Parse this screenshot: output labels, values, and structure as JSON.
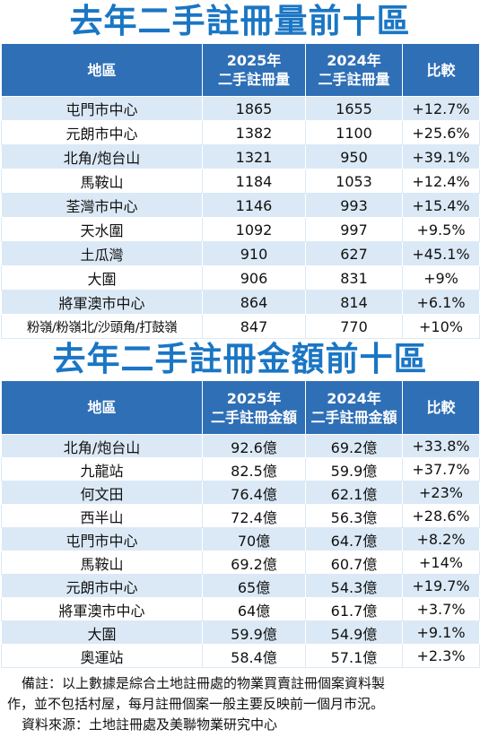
{
  "table1": {
    "title": "去年二手註冊量前十區",
    "headers": {
      "district": "地區",
      "y2025_line1": "2025年",
      "y2025_line2": "二手註冊量",
      "y2024_line1": "2024年",
      "y2024_line2": "二手註冊量",
      "compare": "比較"
    },
    "rows": [
      {
        "district": "屯門市中心",
        "y2025": "1865",
        "y2024": "1655",
        "change": "+12.7%"
      },
      {
        "district": "元朗市中心",
        "y2025": "1382",
        "y2024": "1100",
        "change": "+25.6%"
      },
      {
        "district": "北角/炮台山",
        "y2025": "1321",
        "y2024": "950",
        "change": "+39.1%"
      },
      {
        "district": "馬鞍山",
        "y2025": "1184",
        "y2024": "1053",
        "change": "+12.4%"
      },
      {
        "district": "荃灣市中心",
        "y2025": "1146",
        "y2024": "993",
        "change": "+15.4%"
      },
      {
        "district": "天水圍",
        "y2025": "1092",
        "y2024": "997",
        "change": "+9.5%"
      },
      {
        "district": "土瓜灣",
        "y2025": "910",
        "y2024": "627",
        "change": "+45.1%"
      },
      {
        "district": "大圍",
        "y2025": "906",
        "y2024": "831",
        "change": "+9%"
      },
      {
        "district": "將軍澳市中心",
        "y2025": "864",
        "y2024": "814",
        "change": "+6.1%"
      },
      {
        "district": "粉嶺/粉嶺北/沙頭角/打鼓嶺",
        "y2025": "847",
        "y2024": "770",
        "change": "+10%"
      }
    ]
  },
  "table2": {
    "title": "去年二手註冊金額前十區",
    "headers": {
      "district": "地區",
      "y2025_line1": "2025年",
      "y2025_line2": "二手註冊金額",
      "y2024_line1": "2024年",
      "y2024_line2": "二手註冊金額",
      "compare": "比較"
    },
    "rows": [
      {
        "district": "北角/炮台山",
        "y2025": "92.6億",
        "y2024": "69.2億",
        "change": "+33.8%"
      },
      {
        "district": "九龍站",
        "y2025": "82.5億",
        "y2024": "59.9億",
        "change": "+37.7%"
      },
      {
        "district": "何文田",
        "y2025": "76.4億",
        "y2024": "62.1億",
        "change": "+23%"
      },
      {
        "district": "西半山",
        "y2025": "72.4億",
        "y2024": "56.3億",
        "change": "+28.6%"
      },
      {
        "district": "屯門市中心",
        "y2025": "70億",
        "y2024": "64.7億",
        "change": "+8.2%"
      },
      {
        "district": "馬鞍山",
        "y2025": "69.2億",
        "y2024": "60.7億",
        "change": "+14%"
      },
      {
        "district": "元朗市中心",
        "y2025": "65億",
        "y2024": "54.3億",
        "change": "+19.7%"
      },
      {
        "district": "將軍澳市中心",
        "y2025": "64億",
        "y2024": "61.7億",
        "change": "+3.7%"
      },
      {
        "district": "大圍",
        "y2025": "59.9億",
        "y2024": "54.9億",
        "change": "+9.1%"
      },
      {
        "district": "奧運站",
        "y2025": "58.4億",
        "y2024": "57.1億",
        "change": "+2.3%"
      }
    ]
  },
  "notes": {
    "line1": "備註：以上數據是綜合土地註冊處的物業買賣註冊個案資料製",
    "line2": "作，並不包括村屋，每月註冊個案一般主要反映前一個月市況。",
    "source": "資料來源：土地註冊處及美聯物業研究中心"
  },
  "colors": {
    "title": "#1a76c4",
    "header_bg": "#2f6fb6",
    "row_alt": "#dbe9f6"
  }
}
